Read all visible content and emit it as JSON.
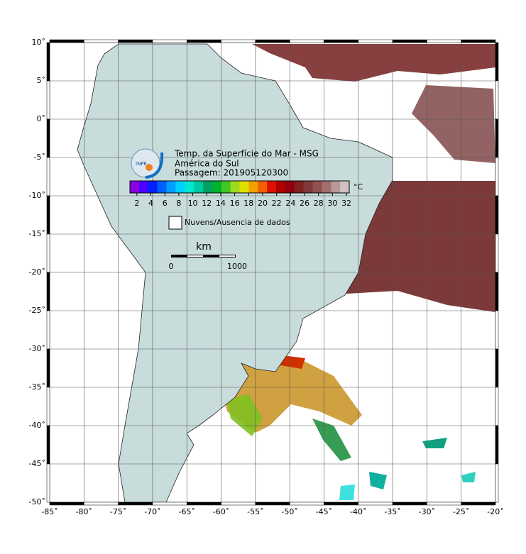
{
  "map": {
    "title_lines": [
      "Temp. da Superfície do Mar - MSG",
      "América do Sul",
      "Passagem: 201905120300"
    ],
    "logo": "INPE",
    "xlim": [
      -85,
      -20
    ],
    "ylim": [
      -50,
      10
    ],
    "xticks": [
      {
        "value": -85,
        "label": "-85˚"
      },
      {
        "value": -80,
        "label": "-80˚"
      },
      {
        "value": -75,
        "label": "-75˚"
      },
      {
        "value": -70,
        "label": "-70˚"
      },
      {
        "value": -65,
        "label": "-65˚"
      },
      {
        "value": -60,
        "label": "-60˚"
      },
      {
        "value": -55,
        "label": "-55˚"
      },
      {
        "value": -50,
        "label": "-50˚"
      },
      {
        "value": -45,
        "label": "-45˚"
      },
      {
        "value": -40,
        "label": "-40˚"
      },
      {
        "value": -35,
        "label": "-35˚"
      },
      {
        "value": -30,
        "label": "-30˚"
      },
      {
        "value": -25,
        "label": "-25˚"
      },
      {
        "value": -20,
        "label": "-20˚"
      }
    ],
    "yticks": [
      {
        "value": 10,
        "label": "10˚"
      },
      {
        "value": 5,
        "label": "5˚"
      },
      {
        "value": 0,
        "label": "0˚"
      },
      {
        "value": -5,
        "label": "-5˚"
      },
      {
        "value": -10,
        "label": "-10˚"
      },
      {
        "value": -15,
        "label": "-15˚"
      },
      {
        "value": -20,
        "label": "-20˚"
      },
      {
        "value": -25,
        "label": "-25˚"
      },
      {
        "value": -30,
        "label": "-30˚"
      },
      {
        "value": -35,
        "label": "-35˚"
      },
      {
        "value": -40,
        "label": "-40˚"
      },
      {
        "value": -45,
        "label": "-45˚"
      },
      {
        "value": -50,
        "label": "-50˚"
      }
    ],
    "colorbar": {
      "lim": [
        1,
        32.4
      ],
      "ticks": [
        2,
        4,
        6,
        8,
        10,
        12,
        14,
        16,
        18,
        20,
        22,
        24,
        26,
        28,
        30,
        32
      ],
      "unit": "°C",
      "colors": [
        "#8a00e0",
        "#4b00ff",
        "#0020ff",
        "#0060ff",
        "#00a0ff",
        "#00d0ff",
        "#00e8d0",
        "#00c8a0",
        "#00a060",
        "#00b030",
        "#40c820",
        "#a0d820",
        "#e0e000",
        "#f0a000",
        "#f06000",
        "#e01000",
        "#b00000",
        "#900010",
        "#802020",
        "#803838",
        "#905050",
        "#a07070",
        "#b89898",
        "#d0c0c0"
      ]
    },
    "legend": "Nuvens/Ausencia de dados",
    "scale": {
      "unit": "km",
      "labels": [
        0,
        1000
      ]
    }
  }
}
